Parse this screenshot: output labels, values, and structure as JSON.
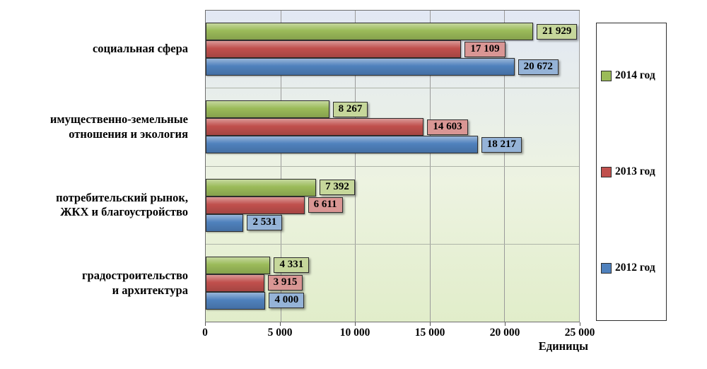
{
  "chart_data": {
    "type": "bar",
    "orientation": "horizontal",
    "x_max": 25000,
    "x_ticks": [
      "0",
      "5 000",
      "10 000",
      "15 000",
      "20 000",
      "25 000"
    ],
    "xlabel": "Единицы",
    "grid": "vertical",
    "legend_position": "right",
    "categories": [
      "социальная сфера",
      "имущественно-земельные\nотношения и экология",
      "потребительский рынок,\nЖКХ и благоустройство",
      "градостроительство\nи архитектура"
    ],
    "series": [
      {
        "name": "2014 год",
        "color": "#9BBB59",
        "label_fill": "#C6D79B",
        "values": [
          21929,
          8267,
          7392,
          4331
        ],
        "value_labels": [
          "21 929",
          "8 267",
          "7 392",
          "4 331"
        ]
      },
      {
        "name": "2013 год",
        "color": "#C0504D",
        "label_fill": "#D99694",
        "values": [
          17109,
          14603,
          6611,
          3915
        ],
        "value_labels": [
          "17 109",
          "14 603",
          "6 611",
          "3 915"
        ]
      },
      {
        "name": "2012 год",
        "color": "#4F81BD",
        "label_fill": "#95B3D7",
        "values": [
          20672,
          18217,
          2531,
          4000
        ],
        "value_labels": [
          "20 672",
          "18 217",
          "2 531",
          "4 000"
        ]
      }
    ]
  }
}
